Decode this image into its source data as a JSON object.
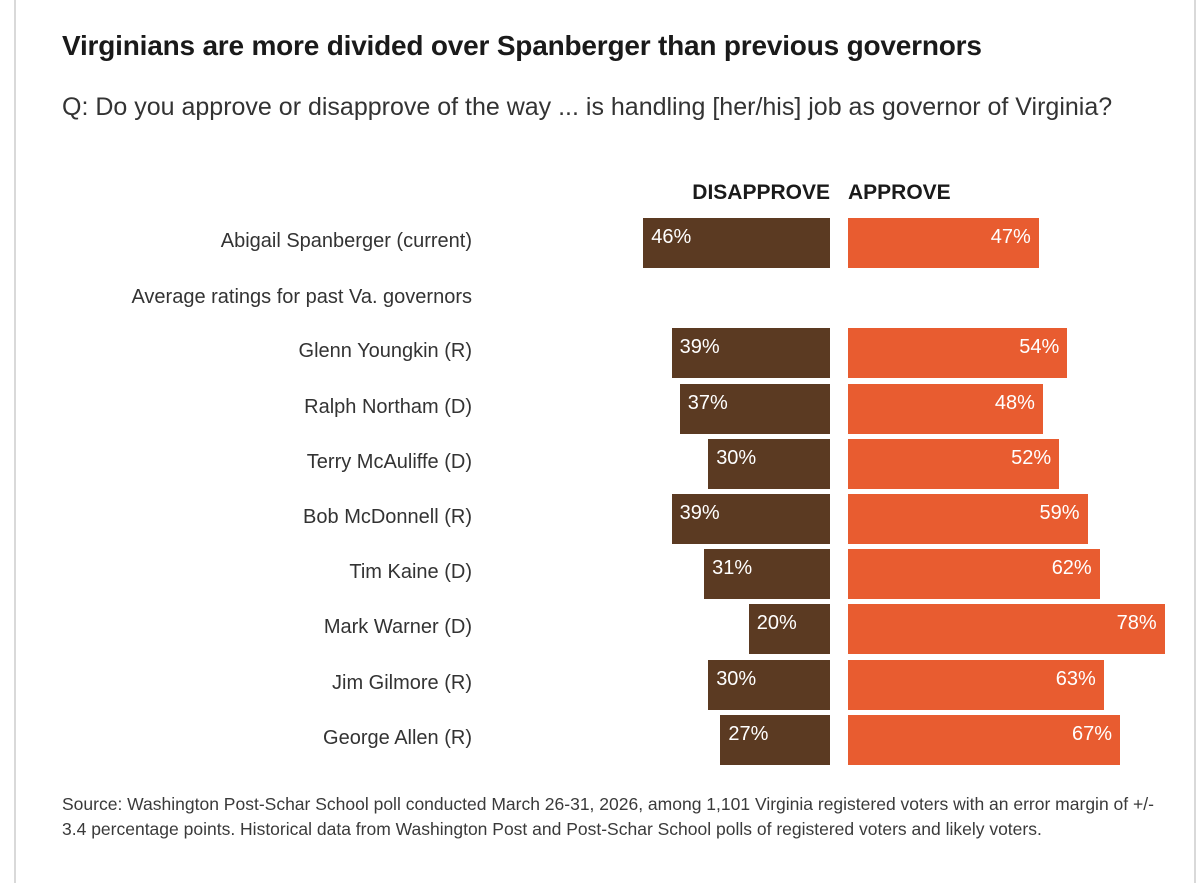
{
  "chart_data": {
    "type": "bar",
    "orientation": "diverging-horizontal",
    "title": "Virginians are more divided over Spanberger than previous governors",
    "subtitle": "Q: Do you approve or disapprove of the way ... is handling [her/his] job as governor of Virginia?",
    "column_labels": {
      "disapprove": "DISAPPROVE",
      "approve": "APPROVE"
    },
    "section_label": "Average ratings for past Va. governors",
    "categories": [
      "Abigail Spanberger (current)",
      "Glenn Youngkin (R)",
      "Ralph Northam (D)",
      "Terry McAuliffe (D)",
      "Bob McDonnell (R)",
      "Tim Kaine (D)",
      "Mark Warner (D)",
      "Jim Gilmore (R)",
      "George Allen (R)"
    ],
    "series": [
      {
        "name": "Disapprove",
        "color": "#5b3a22",
        "values": [
          46,
          39,
          37,
          30,
          39,
          31,
          20,
          30,
          27
        ]
      },
      {
        "name": "Approve",
        "color": "#e85c30",
        "values": [
          47,
          54,
          48,
          52,
          59,
          62,
          78,
          63,
          67
        ]
      }
    ],
    "value_suffix": "%",
    "source": "Source: Washington Post-Schar School poll conducted March 26-31, 2026, among 1,101 Virginia registered voters with an error margin of +/- 3.4 percentage points. Historical data from Washington Post and Post-Schar School polls of registered voters and likely voters."
  }
}
